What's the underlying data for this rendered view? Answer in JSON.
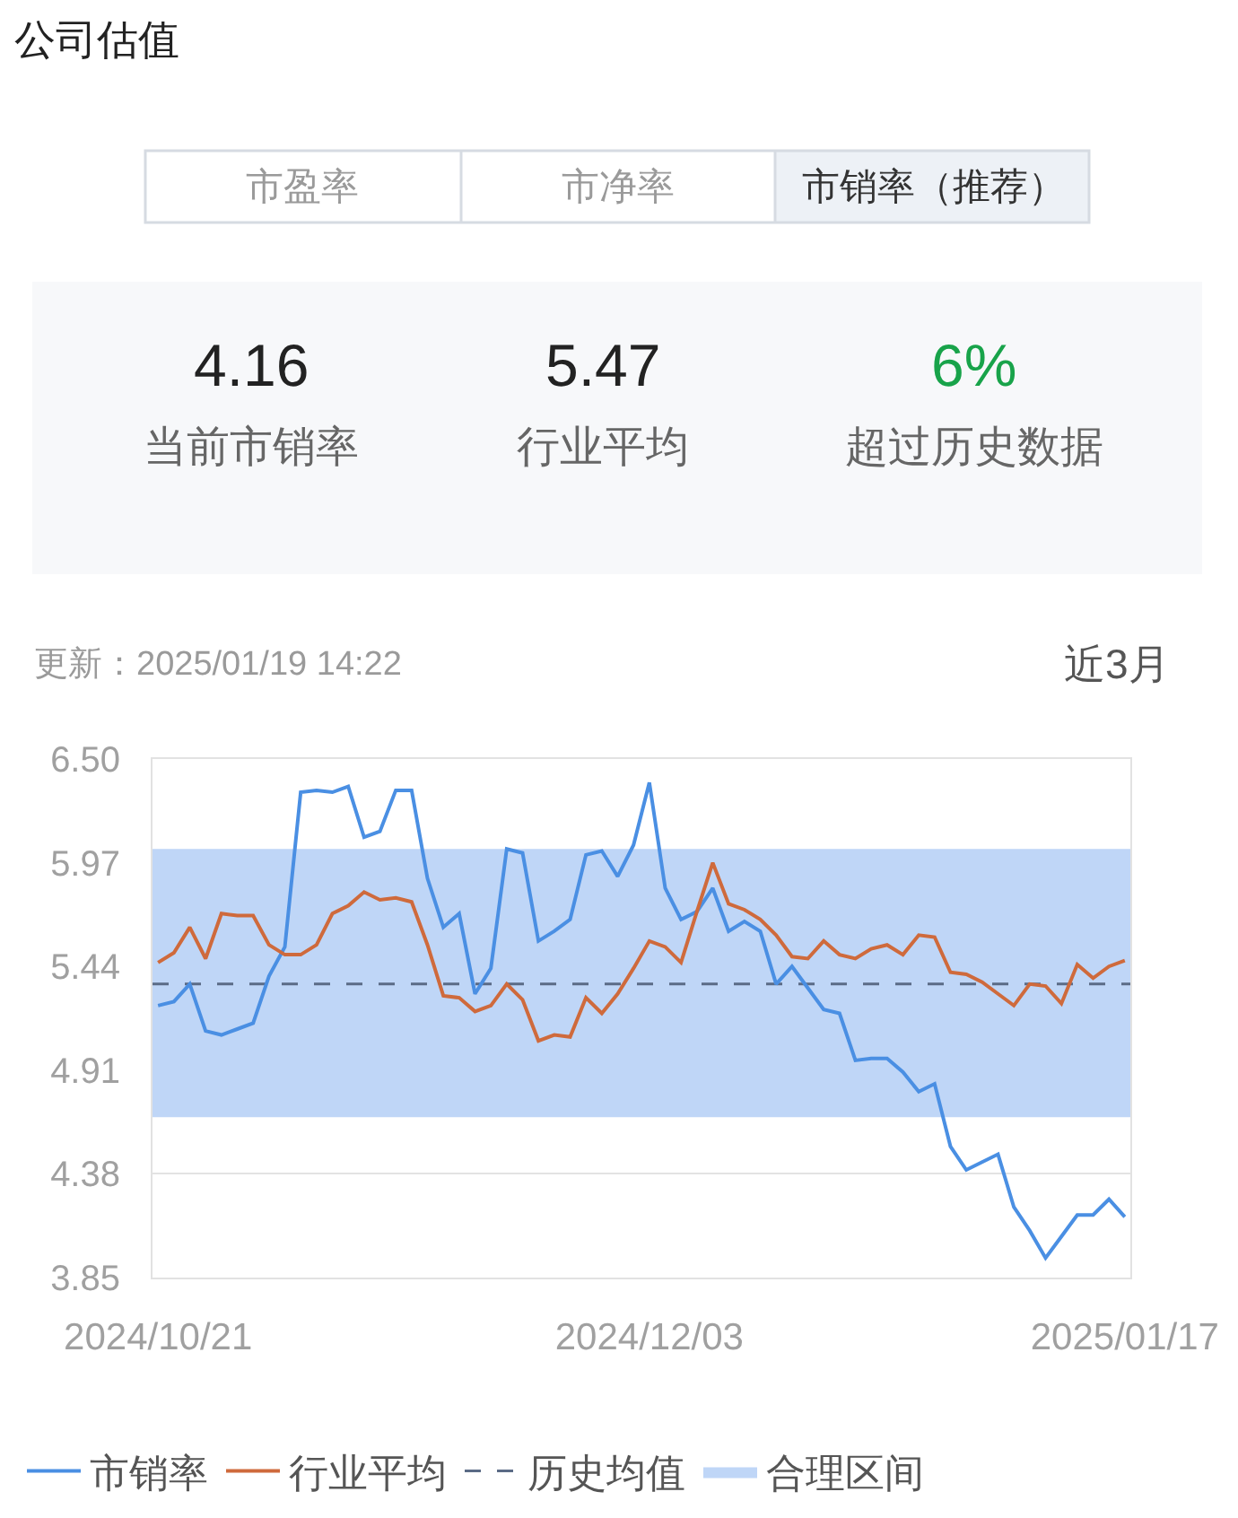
{
  "chart_data": {
    "type": "line",
    "title": "公司估值",
    "categories": [
      "2024/10/21",
      null,
      null,
      null,
      null,
      null,
      null,
      null,
      null,
      null,
      null,
      null,
      null,
      null,
      null,
      null,
      null,
      null,
      null,
      null,
      null,
      null,
      null,
      null,
      null,
      null,
      null,
      null,
      null,
      null,
      null,
      "2024/12/03",
      null,
      null,
      null,
      null,
      null,
      null,
      null,
      null,
      null,
      null,
      null,
      null,
      null,
      null,
      null,
      null,
      null,
      null,
      null,
      null,
      null,
      null,
      null,
      null,
      null,
      null,
      null,
      null,
      null,
      "2025/01/17"
    ],
    "series": [
      {
        "name": "市销率",
        "color": "#4a8fe3",
        "values": [
          5.24,
          5.26,
          5.35,
          5.11,
          5.09,
          5.12,
          5.15,
          5.39,
          5.54,
          6.33,
          6.34,
          6.33,
          6.36,
          6.1,
          6.13,
          6.34,
          6.34,
          5.89,
          5.64,
          5.71,
          5.3,
          5.43,
          6.04,
          6.02,
          5.57,
          5.62,
          5.68,
          6.01,
          6.03,
          5.9,
          6.06,
          6.38,
          5.84,
          5.68,
          5.72,
          5.84,
          5.62,
          5.67,
          5.62,
          5.35,
          5.44,
          5.33,
          5.22,
          5.2,
          4.96,
          4.97,
          4.97,
          4.9,
          4.8,
          4.84,
          4.52,
          4.4,
          4.44,
          4.48,
          4.21,
          4.09,
          3.95,
          4.06,
          4.17,
          4.17,
          4.25,
          4.16
        ]
      },
      {
        "name": "行业平均",
        "color": "#cf6a3c",
        "values": [
          5.46,
          5.51,
          5.64,
          5.48,
          5.71,
          5.7,
          5.7,
          5.55,
          5.5,
          5.5,
          5.55,
          5.71,
          5.75,
          5.82,
          5.78,
          5.79,
          5.77,
          5.55,
          5.29,
          5.28,
          5.21,
          5.24,
          5.35,
          5.27,
          5.06,
          5.09,
          5.08,
          5.28,
          5.2,
          5.3,
          5.43,
          5.57,
          5.54,
          5.46,
          5.72,
          5.97,
          5.76,
          5.73,
          5.68,
          5.6,
          5.49,
          5.48,
          5.57,
          5.5,
          5.48,
          5.53,
          5.55,
          5.5,
          5.6,
          5.59,
          5.41,
          5.4,
          5.36,
          5.3,
          5.24,
          5.35,
          5.34,
          5.25,
          5.45,
          5.38,
          5.44,
          5.47
        ]
      }
    ],
    "ylim": [
      3.85,
      6.5
    ],
    "yticks": [
      3.85,
      4.38,
      4.91,
      5.44,
      5.97,
      {
        "value": 6.5,
        "label": "6.50"
      }
    ],
    "ref_lines": [
      {
        "axis": "y",
        "value": 5.35,
        "label": "历史均值",
        "color": "#5b6b86",
        "line_style": "dashed"
      }
    ],
    "bands": [
      {
        "axis": "y",
        "from": 4.67,
        "to": 6.04,
        "label": "合理区间",
        "color": "#bfd6f7"
      }
    ],
    "grid": "y",
    "legend": "bottom",
    "annotations": [
      "市盈率",
      "市净率",
      "市销率（推荐）",
      "4.16",
      "当前市销率",
      "5.47",
      "行业平均",
      "6%",
      "超过历史数据",
      "更新：2025/01/19 14:22",
      "近3月"
    ]
  }
}
